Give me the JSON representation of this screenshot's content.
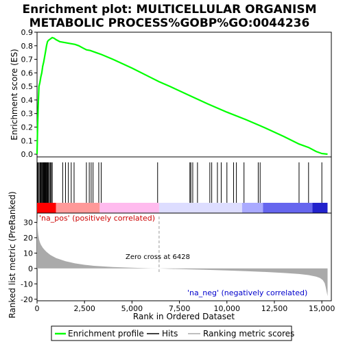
{
  "chart_data": [
    {
      "type": "line",
      "title_line1": "Enrichment plot: MULTICELLULAR ORGANISM",
      "title_line2": "METABOLIC PROCESS%GOBP%GO:0044236",
      "ylabel": "Enrichment score (ES)",
      "ylim": [
        -0.02,
        0.9
      ],
      "y_ticks": [
        "0.0",
        "0.1",
        "0.2",
        "0.3",
        "0.4",
        "0.5",
        "0.6",
        "0.7",
        "0.8",
        "0.9"
      ],
      "series": [
        {
          "name": "Enrichment profile",
          "color": "#00ff00",
          "x": [
            0,
            30,
            60,
            100,
            150,
            200,
            250,
            300,
            350,
            400,
            450,
            500,
            550,
            600,
            700,
            800,
            900,
            1000,
            1200,
            1400,
            1600,
            1800,
            2000,
            2200,
            2400,
            2600,
            2800,
            3000,
            3200,
            3400,
            4000,
            5000,
            6000,
            6428,
            7000,
            8000,
            9000,
            10000,
            11000,
            12000,
            13000,
            13800,
            14300,
            14700,
            15000,
            15300
          ],
          "y": [
            0.0,
            0.2,
            0.36,
            0.5,
            0.53,
            0.57,
            0.6,
            0.65,
            0.68,
            0.72,
            0.76,
            0.8,
            0.83,
            0.84,
            0.85,
            0.86,
            0.855,
            0.845,
            0.83,
            0.825,
            0.82,
            0.815,
            0.81,
            0.8,
            0.785,
            0.77,
            0.765,
            0.755,
            0.745,
            0.735,
            0.7,
            0.635,
            0.565,
            0.535,
            0.5,
            0.435,
            0.37,
            0.31,
            0.255,
            0.195,
            0.13,
            0.075,
            0.05,
            0.02,
            0.005,
            0.0
          ]
        }
      ]
    },
    {
      "type": "scatter",
      "series": [
        {
          "name": "Hits",
          "color": "#000000",
          "x": [
            20,
            60,
            110,
            160,
            200,
            240,
            280,
            310,
            340,
            370,
            400,
            430,
            460,
            490,
            520,
            560,
            600,
            650,
            700,
            750,
            800,
            1350,
            1500,
            1650,
            1800,
            1950,
            2600,
            2750,
            2850,
            2950,
            3250,
            3380,
            6350,
            8050,
            8100,
            8200,
            8450,
            9100,
            9200,
            9500,
            9700,
            10000,
            10350,
            10500,
            10900,
            11650,
            11750,
            13800,
            14300,
            15000
          ]
        }
      ]
    },
    {
      "type": "heatmap",
      "legend": "Ranking metric scores",
      "x_range": [
        0,
        15300
      ],
      "colors": [
        "#ff0000",
        "#ff9999",
        "#ffbbee",
        "#ddddff",
        "#aaaaff",
        "#6666ee",
        "#2222cc"
      ],
      "segments": [
        {
          "x0": 0,
          "x1": 1000,
          "color": "#ff0000"
        },
        {
          "x0": 1000,
          "x1": 3300,
          "color": "#ff9999"
        },
        {
          "x0": 3300,
          "x1": 6428,
          "color": "#ffbbee"
        },
        {
          "x0": 6428,
          "x1": 10800,
          "color": "#ddddff"
        },
        {
          "x0": 10800,
          "x1": 11900,
          "color": "#aaaaff"
        },
        {
          "x0": 11900,
          "x1": 14500,
          "color": "#6666ee"
        },
        {
          "x0": 14500,
          "x1": 15300,
          "color": "#2222cc"
        }
      ]
    },
    {
      "type": "area",
      "ylabel": "Ranked list metric (PreRanked)",
      "xlabel": "Rank in Ordered Dataset",
      "ylim": [
        -21,
        36
      ],
      "y_ticks": [
        "30",
        "20",
        "10",
        "0",
        "-10",
        "-20"
      ],
      "x_ticks": [
        "0",
        "2,500",
        "5,000",
        "7,500",
        "10,000",
        "12,500",
        "15,000"
      ],
      "zero_cross_label": "Zero cross at 6428",
      "zero_cross": 6428,
      "pos_label": "'na_pos' (positively correlated)",
      "neg_label": "'na_neg' (negatively correlated)",
      "pos_label_color": "#cc0000",
      "neg_label_color": "#0000cc",
      "series": [
        {
          "name": "Ranking metric scores",
          "color": "#aaaaaa",
          "x": [
            0,
            10,
            30,
            60,
            100,
            150,
            200,
            300,
            400,
            500,
            700,
            1000,
            1500,
            2000,
            2500,
            3000,
            4000,
            5000,
            6000,
            6428,
            7000,
            8000,
            9000,
            10000,
            11000,
            12000,
            13000,
            13800,
            14300,
            14700,
            14900,
            15050,
            15150,
            15200,
            15250,
            15300
          ],
          "y": [
            33,
            30,
            26,
            22,
            19,
            17,
            15.5,
            13.5,
            12,
            10.8,
            8.8,
            6.8,
            4.7,
            3.3,
            2.4,
            1.7,
            0.9,
            0.45,
            0.12,
            0.0,
            -0.25,
            -0.55,
            -0.9,
            -1.3,
            -1.75,
            -2.25,
            -2.9,
            -3.6,
            -4.3,
            -5.3,
            -6.2,
            -7.5,
            -9.5,
            -12,
            -15,
            -18
          ]
        }
      ]
    }
  ],
  "legend": {
    "items": [
      {
        "label": "Enrichment profile",
        "color": "#00ff00"
      },
      {
        "label": "Hits",
        "color": "#000000"
      },
      {
        "label": "Ranking metric scores",
        "color": "#aaaaaa"
      }
    ]
  }
}
